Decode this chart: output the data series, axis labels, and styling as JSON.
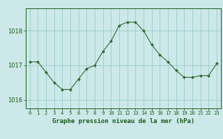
{
  "x": [
    0,
    1,
    2,
    3,
    4,
    5,
    6,
    7,
    8,
    9,
    10,
    11,
    12,
    13,
    14,
    15,
    16,
    17,
    18,
    19,
    20,
    21,
    22,
    23
  ],
  "y": [
    1017.1,
    1017.1,
    1016.8,
    1016.5,
    1016.3,
    1016.3,
    1016.6,
    1016.9,
    1017.0,
    1017.4,
    1017.7,
    1018.15,
    1018.25,
    1018.25,
    1018.0,
    1017.6,
    1017.3,
    1017.1,
    1016.85,
    1016.65,
    1016.65,
    1016.7,
    1016.7,
    1017.05
  ],
  "line_color": "#2d6a2d",
  "marker_color": "#2d6a2d",
  "bg_color": "#cce8e8",
  "plot_bg_color": "#cce8e8",
  "grid_color": "#99cccc",
  "ylabel_ticks": [
    1016,
    1017,
    1018
  ],
  "ylim": [
    1015.75,
    1018.65
  ],
  "xlim": [
    -0.5,
    23.5
  ],
  "xlabel": "Graphe pression niveau de la mer (hPa)",
  "xlabel_color": "#1a5c1a",
  "tick_color": "#1a5c1a",
  "xtick_fontsize": 5.2,
  "ytick_fontsize": 6.0,
  "label_font_size": 6.5
}
